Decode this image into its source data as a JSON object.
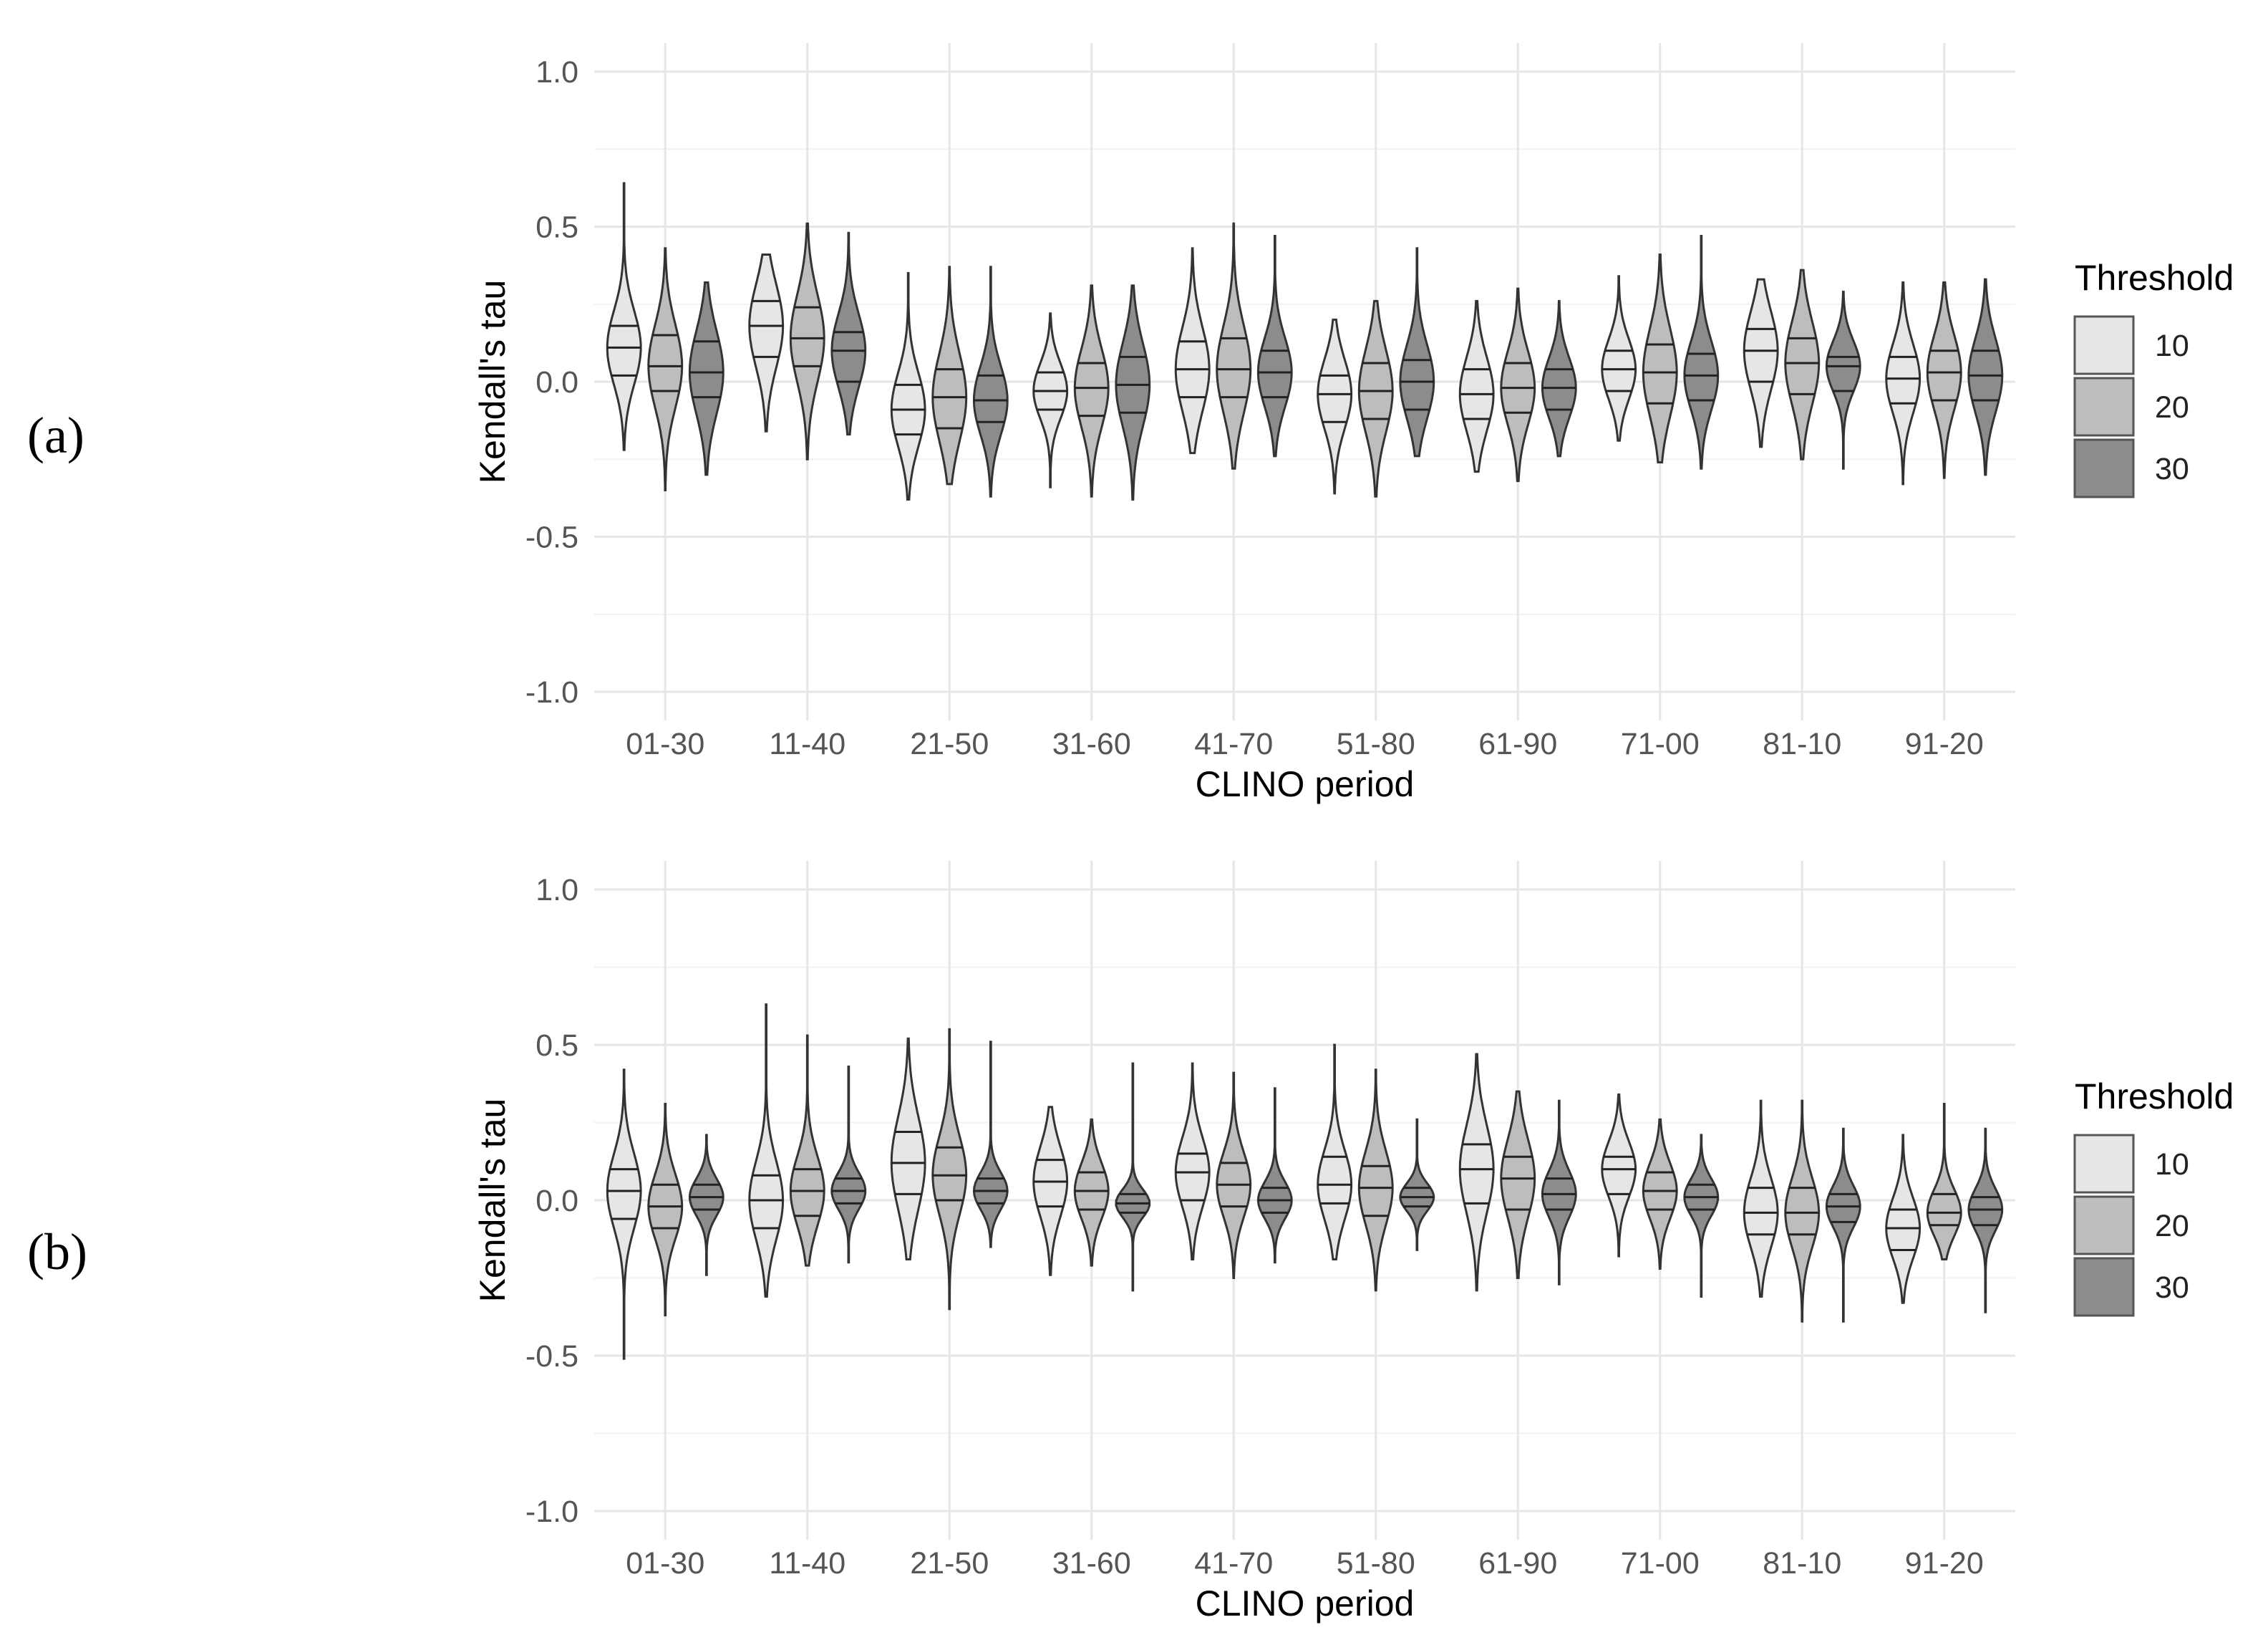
{
  "panel_labels": [
    "(a)",
    "(b)"
  ],
  "legend": {
    "title": "Threshold",
    "items": [
      {
        "label": "10",
        "color": "#e6e6e6"
      },
      {
        "label": "20",
        "color": "#bdbdbd"
      },
      {
        "label": "30",
        "color": "#8c8c8c"
      }
    ]
  },
  "chart_data": [
    {
      "type": "violin",
      "panel": "(a)",
      "xlabel": "CLINO period",
      "ylabel": "Kendall's tau",
      "ylim": [
        -1.0,
        1.0
      ],
      "yticks": [
        "1.0",
        "0.5",
        "0.0",
        "-0.5",
        "-1.0"
      ],
      "categories": [
        "01-30",
        "11-40",
        "21-50",
        "31-60",
        "41-70",
        "51-80",
        "61-90",
        "71-00",
        "81-10",
        "91-20"
      ],
      "grid": true,
      "legend_position": "right",
      "series": [
        {
          "name": "10",
          "color": "#e6e6e6",
          "min": [
            -0.22,
            -0.16,
            -0.38,
            -0.34,
            -0.23,
            -0.36,
            -0.29,
            -0.19,
            -0.21,
            -0.33
          ],
          "q1": [
            0.02,
            0.08,
            -0.17,
            -0.09,
            -0.05,
            -0.13,
            -0.12,
            -0.03,
            0.0,
            -0.07
          ],
          "median": [
            0.11,
            0.18,
            -0.09,
            -0.03,
            0.04,
            -0.04,
            -0.04,
            0.04,
            0.1,
            0.01
          ],
          "q3": [
            0.18,
            0.26,
            -0.01,
            0.03,
            0.13,
            0.02,
            0.04,
            0.1,
            0.17,
            0.08
          ],
          "max": [
            0.64,
            0.41,
            0.35,
            0.22,
            0.43,
            0.2,
            0.26,
            0.34,
            0.33,
            0.32
          ]
        },
        {
          "name": "20",
          "color": "#bdbdbd",
          "min": [
            -0.35,
            -0.25,
            -0.33,
            -0.37,
            -0.28,
            -0.37,
            -0.32,
            -0.26,
            -0.25,
            -0.31
          ],
          "q1": [
            -0.03,
            0.05,
            -0.15,
            -0.11,
            -0.05,
            -0.12,
            -0.1,
            -0.07,
            -0.04,
            -0.06
          ],
          "median": [
            0.05,
            0.14,
            -0.05,
            -0.02,
            0.04,
            -0.03,
            -0.02,
            0.03,
            0.06,
            0.03
          ],
          "q3": [
            0.15,
            0.24,
            0.04,
            0.06,
            0.14,
            0.06,
            0.06,
            0.12,
            0.14,
            0.1
          ],
          "max": [
            0.43,
            0.51,
            0.37,
            0.31,
            0.51,
            0.26,
            0.3,
            0.41,
            0.36,
            0.32
          ]
        },
        {
          "name": "30",
          "color": "#8c8c8c",
          "min": [
            -0.3,
            -0.17,
            -0.37,
            -0.38,
            -0.24,
            -0.24,
            -0.24,
            -0.28,
            -0.28,
            -0.3
          ],
          "q1": [
            -0.05,
            0.0,
            -0.13,
            -0.1,
            -0.05,
            -0.09,
            -0.09,
            -0.06,
            -0.03,
            -0.06
          ],
          "median": [
            0.03,
            0.1,
            -0.06,
            -0.01,
            0.03,
            0.0,
            -0.02,
            0.02,
            0.05,
            0.02
          ],
          "q3": [
            0.13,
            0.16,
            0.02,
            0.08,
            0.1,
            0.07,
            0.04,
            0.09,
            0.08,
            0.1
          ],
          "max": [
            0.32,
            0.48,
            0.37,
            0.31,
            0.47,
            0.43,
            0.26,
            0.47,
            0.29,
            0.33
          ]
        }
      ]
    },
    {
      "type": "violin",
      "panel": "(b)",
      "xlabel": "CLINO period",
      "ylabel": "Kendall's tau",
      "ylim": [
        -1.0,
        1.0
      ],
      "yticks": [
        "1.0",
        "0.5",
        "0.0",
        "-0.5",
        "-1.0"
      ],
      "categories": [
        "01-30",
        "11-40",
        "21-50",
        "31-60",
        "41-70",
        "51-80",
        "61-90",
        "71-00",
        "81-10",
        "91-20"
      ],
      "grid": true,
      "legend_position": "right",
      "series": [
        {
          "name": "10",
          "color": "#e6e6e6",
          "min": [
            -0.51,
            -0.31,
            -0.19,
            -0.24,
            -0.19,
            -0.19,
            -0.29,
            -0.18,
            -0.31,
            -0.33
          ],
          "q1": [
            -0.06,
            -0.09,
            0.02,
            -0.02,
            0.0,
            -0.01,
            -0.01,
            0.02,
            -0.11,
            -0.16
          ],
          "median": [
            0.03,
            0.0,
            0.12,
            0.06,
            0.09,
            0.05,
            0.1,
            0.1,
            -0.04,
            -0.09
          ],
          "q3": [
            0.1,
            0.08,
            0.22,
            0.13,
            0.15,
            0.14,
            0.18,
            0.14,
            0.04,
            -0.03
          ],
          "max": [
            0.42,
            0.63,
            0.52,
            0.3,
            0.44,
            0.5,
            0.47,
            0.34,
            0.32,
            0.21
          ]
        },
        {
          "name": "20",
          "color": "#bdbdbd",
          "min": [
            -0.37,
            -0.21,
            -0.35,
            -0.21,
            -0.25,
            -0.29,
            -0.25,
            -0.22,
            -0.39,
            -0.19
          ],
          "q1": [
            -0.09,
            -0.05,
            0.0,
            -0.03,
            -0.02,
            -0.05,
            -0.03,
            -0.03,
            -0.11,
            -0.08
          ],
          "median": [
            -0.02,
            0.03,
            0.08,
            0.03,
            0.05,
            0.04,
            0.07,
            0.03,
            -0.04,
            -0.04
          ],
          "q3": [
            0.05,
            0.1,
            0.17,
            0.09,
            0.12,
            0.11,
            0.14,
            0.09,
            0.04,
            0.02
          ],
          "max": [
            0.31,
            0.53,
            0.55,
            0.26,
            0.41,
            0.42,
            0.35,
            0.26,
            0.32,
            0.31
          ]
        },
        {
          "name": "30",
          "color": "#8c8c8c",
          "min": [
            -0.24,
            -0.2,
            -0.15,
            -0.29,
            -0.2,
            -0.16,
            -0.27,
            -0.31,
            -0.39,
            -0.36
          ],
          "q1": [
            -0.03,
            -0.01,
            -0.01,
            -0.04,
            -0.04,
            -0.02,
            -0.03,
            -0.03,
            -0.07,
            -0.08
          ],
          "median": [
            0.01,
            0.03,
            0.03,
            -0.01,
            0.0,
            0.01,
            0.02,
            0.01,
            -0.02,
            -0.03
          ],
          "q3": [
            0.05,
            0.07,
            0.07,
            0.02,
            0.04,
            0.04,
            0.07,
            0.05,
            0.02,
            0.01
          ],
          "max": [
            0.21,
            0.43,
            0.51,
            0.44,
            0.36,
            0.26,
            0.32,
            0.21,
            0.23,
            0.23
          ]
        }
      ]
    }
  ]
}
